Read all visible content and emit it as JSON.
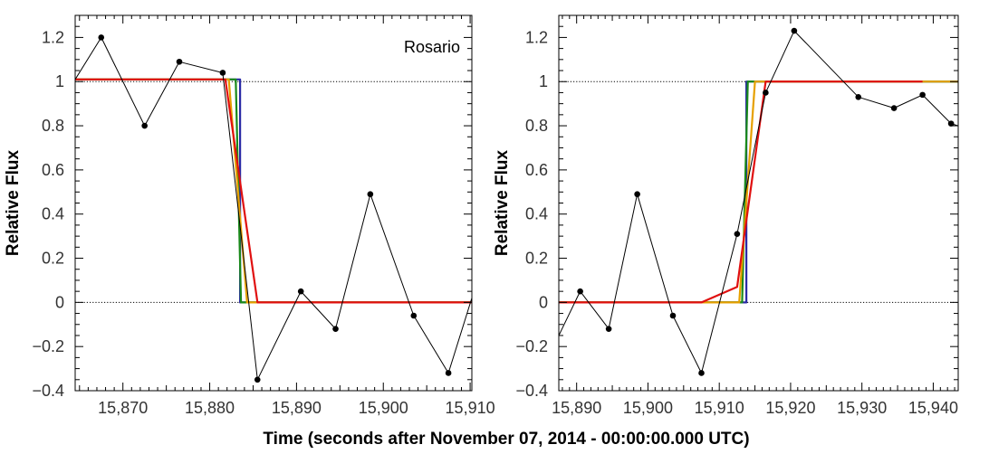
{
  "figure": {
    "xlabel": "Time (seconds after November 07, 2014 - 00:00:00.000 UTC)"
  },
  "chart_data": [
    {
      "type": "line",
      "annotation": "Rosario",
      "ylabel": "Relative Flux",
      "xlim": [
        15864.5,
        15910.2
      ],
      "ylim": [
        -0.4,
        1.3
      ],
      "xticks": [
        15870,
        15880,
        15890,
        15900,
        15910
      ],
      "xtick_labels": [
        "15,870",
        "15,880",
        "15,890",
        "15,900",
        "15,910"
      ],
      "yticks": [
        -0.4,
        -0.2,
        0,
        0.2,
        0.4,
        0.6,
        0.8,
        1,
        1.2
      ],
      "ytick_labels": [
        "−0.4",
        "−0.2",
        "0",
        "0.2",
        "0.4",
        "0.6",
        "0.8",
        "1",
        "1.2"
      ],
      "reference_lines": [
        0,
        1
      ],
      "series": [
        {
          "role": "observed",
          "color": "#000000",
          "markers": true,
          "x": [
            15864.5,
            15867.5,
            15872.5,
            15876.5,
            15881.5,
            15885.5,
            15890.5,
            15894.5,
            15898.5,
            15903.5,
            15907.5,
            15910.2
          ],
          "y": [
            1.01,
            1.2,
            0.8,
            1.09,
            1.04,
            -0.35,
            0.05,
            -0.12,
            0.49,
            -0.06,
            -0.32,
            0.02
          ],
          "marker_x": [
            15867.5,
            15872.5,
            15876.5,
            15881.5,
            15885.5,
            15890.5,
            15894.5,
            15898.5,
            15903.5,
            15907.5
          ],
          "marker_y": [
            1.2,
            0.8,
            1.09,
            1.04,
            -0.35,
            0.05,
            -0.12,
            0.49,
            -0.06,
            -0.32
          ]
        },
        {
          "role": "model",
          "color": "#2a2aa6",
          "x": [
            15864.5,
            15883.5,
            15883.5,
            15910.2
          ],
          "y": [
            1.01,
            1.01,
            0.0,
            0.0
          ]
        },
        {
          "role": "model",
          "color": "#1a8a1a",
          "x": [
            15864.5,
            15883.0,
            15883.6,
            15910.2
          ],
          "y": [
            1.01,
            1.01,
            0.0,
            0.0
          ]
        },
        {
          "role": "model",
          "color": "#e6a000",
          "x": [
            15864.5,
            15882.2,
            15884.3,
            15910.2
          ],
          "y": [
            1.01,
            1.01,
            0.0,
            0.0
          ]
        },
        {
          "role": "model",
          "color": "#e01010",
          "x": [
            15864.5,
            15881.8,
            15885.5,
            15910.2
          ],
          "y": [
            1.01,
            1.01,
            0.0,
            0.0
          ]
        }
      ]
    },
    {
      "type": "line",
      "annotation": "",
      "ylabel": "Relative Flux",
      "xlim": [
        15887.5,
        15943.5
      ],
      "ylim": [
        -0.4,
        1.3
      ],
      "xticks": [
        15890,
        15900,
        15910,
        15920,
        15930,
        15940
      ],
      "xtick_labels": [
        "15,890",
        "15,900",
        "15,910",
        "15,920",
        "15,930",
        "15,940"
      ],
      "yticks": [
        -0.4,
        -0.2,
        0,
        0.2,
        0.4,
        0.6,
        0.8,
        1,
        1.2
      ],
      "ytick_labels": [
        "−0.4",
        "−0.2",
        "0",
        "0.2",
        "0.4",
        "0.6",
        "0.8",
        "1",
        "1.2"
      ],
      "reference_lines": [
        0,
        1
      ],
      "series": [
        {
          "role": "observed",
          "color": "#000000",
          "markers": true,
          "x": [
            15887.5,
            15890.5,
            15894.5,
            15898.5,
            15903.5,
            15907.5,
            15912.5,
            15916.5,
            15920.5,
            15929.5,
            15934.5,
            15938.5,
            15942.5,
            15943.5
          ],
          "y": [
            -0.15,
            0.05,
            -0.12,
            0.49,
            -0.06,
            -0.32,
            0.31,
            0.95,
            1.23,
            0.93,
            0.88,
            0.94,
            0.81,
            0.8
          ],
          "marker_x": [
            15890.5,
            15894.5,
            15898.5,
            15903.5,
            15907.5,
            15912.5,
            15916.5,
            15920.5,
            15929.5,
            15934.5,
            15938.5,
            15942.5
          ],
          "marker_y": [
            0.05,
            -0.12,
            0.49,
            -0.06,
            -0.32,
            0.31,
            0.95,
            1.23,
            0.93,
            0.88,
            0.94,
            0.81
          ]
        },
        {
          "role": "model",
          "color": "#2a2aa6",
          "x": [
            15887.5,
            15913.8,
            15913.8,
            15943.5
          ],
          "y": [
            0.0,
            0.0,
            1.0,
            1.0
          ]
        },
        {
          "role": "model",
          "color": "#1a8a1a",
          "x": [
            15887.5,
            15913.2,
            15914.0,
            15943.5
          ],
          "y": [
            0.0,
            0.0,
            1.0,
            1.0
          ]
        },
        {
          "role": "model",
          "color": "#e6a000",
          "x": [
            15887.5,
            15912.8,
            15915.0,
            15943.5
          ],
          "y": [
            0.0,
            0.0,
            1.0,
            1.0
          ]
        },
        {
          "role": "model",
          "color": "#e01010",
          "x": [
            15887.5,
            15907.5,
            15912.5,
            15916.5,
            15938.5
          ],
          "y": [
            0.0,
            0.0,
            0.07,
            1.0,
            1.0
          ]
        }
      ]
    }
  ]
}
